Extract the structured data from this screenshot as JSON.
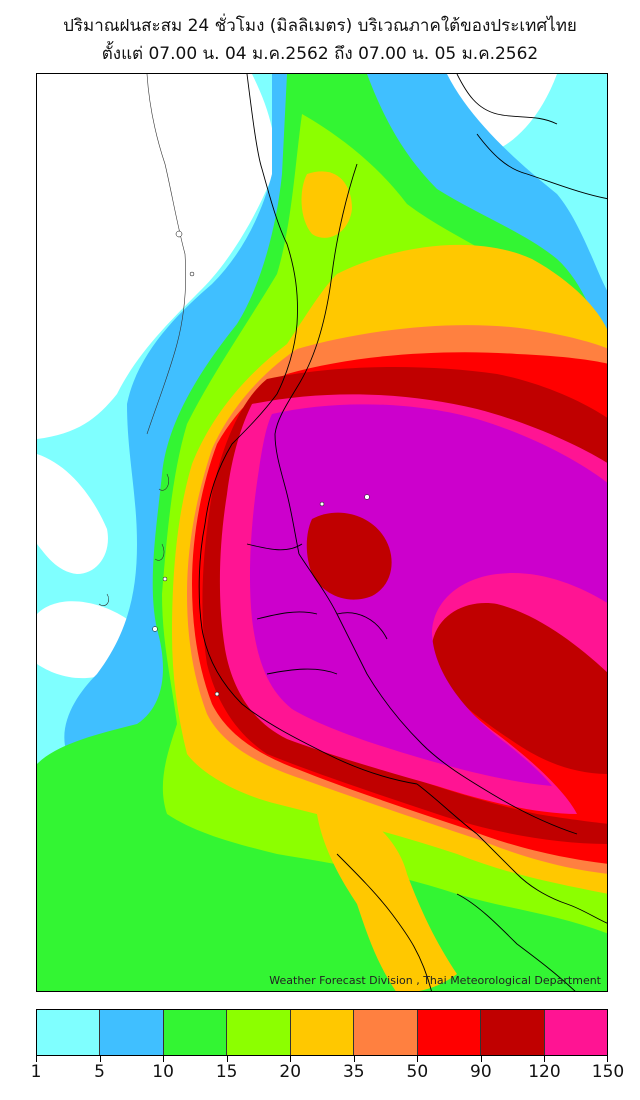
{
  "header": {
    "title_line1": "ปริมาณฝนสะสม 24 ชั่วโมง (มิลลิเมตร) บริเวณภาคใต้ของประเทศไทย",
    "title_line2": "ตั้งแต่ 07.00 น. 04 ม.ค.2562 ถึง 07.00 น. 05 ม.ค.2562"
  },
  "map": {
    "credit": "Weather Forecast Division , Thai Meteorological Department",
    "rain_colors": {
      "1-5": "#7fffff",
      "5-10": "#40bfff",
      "10-15": "#33f533",
      "15-20": "#8cff00",
      "20-35": "#ffc800",
      "35-50": "#ff8040",
      "50-90": "#ff0000",
      "90-120": "#c00000",
      "120-150": "#ff1493",
      "150+": "#cc00cc"
    }
  },
  "legend": {
    "ticks": [
      "1",
      "5",
      "10",
      "15",
      "20",
      "35",
      "50",
      "90",
      "120",
      "150"
    ],
    "colors": [
      "#7fffff",
      "#40bfff",
      "#33f533",
      "#8cff00",
      "#ffc800",
      "#ff8040",
      "#ff0000",
      "#c00000",
      "#ff1493"
    ]
  }
}
